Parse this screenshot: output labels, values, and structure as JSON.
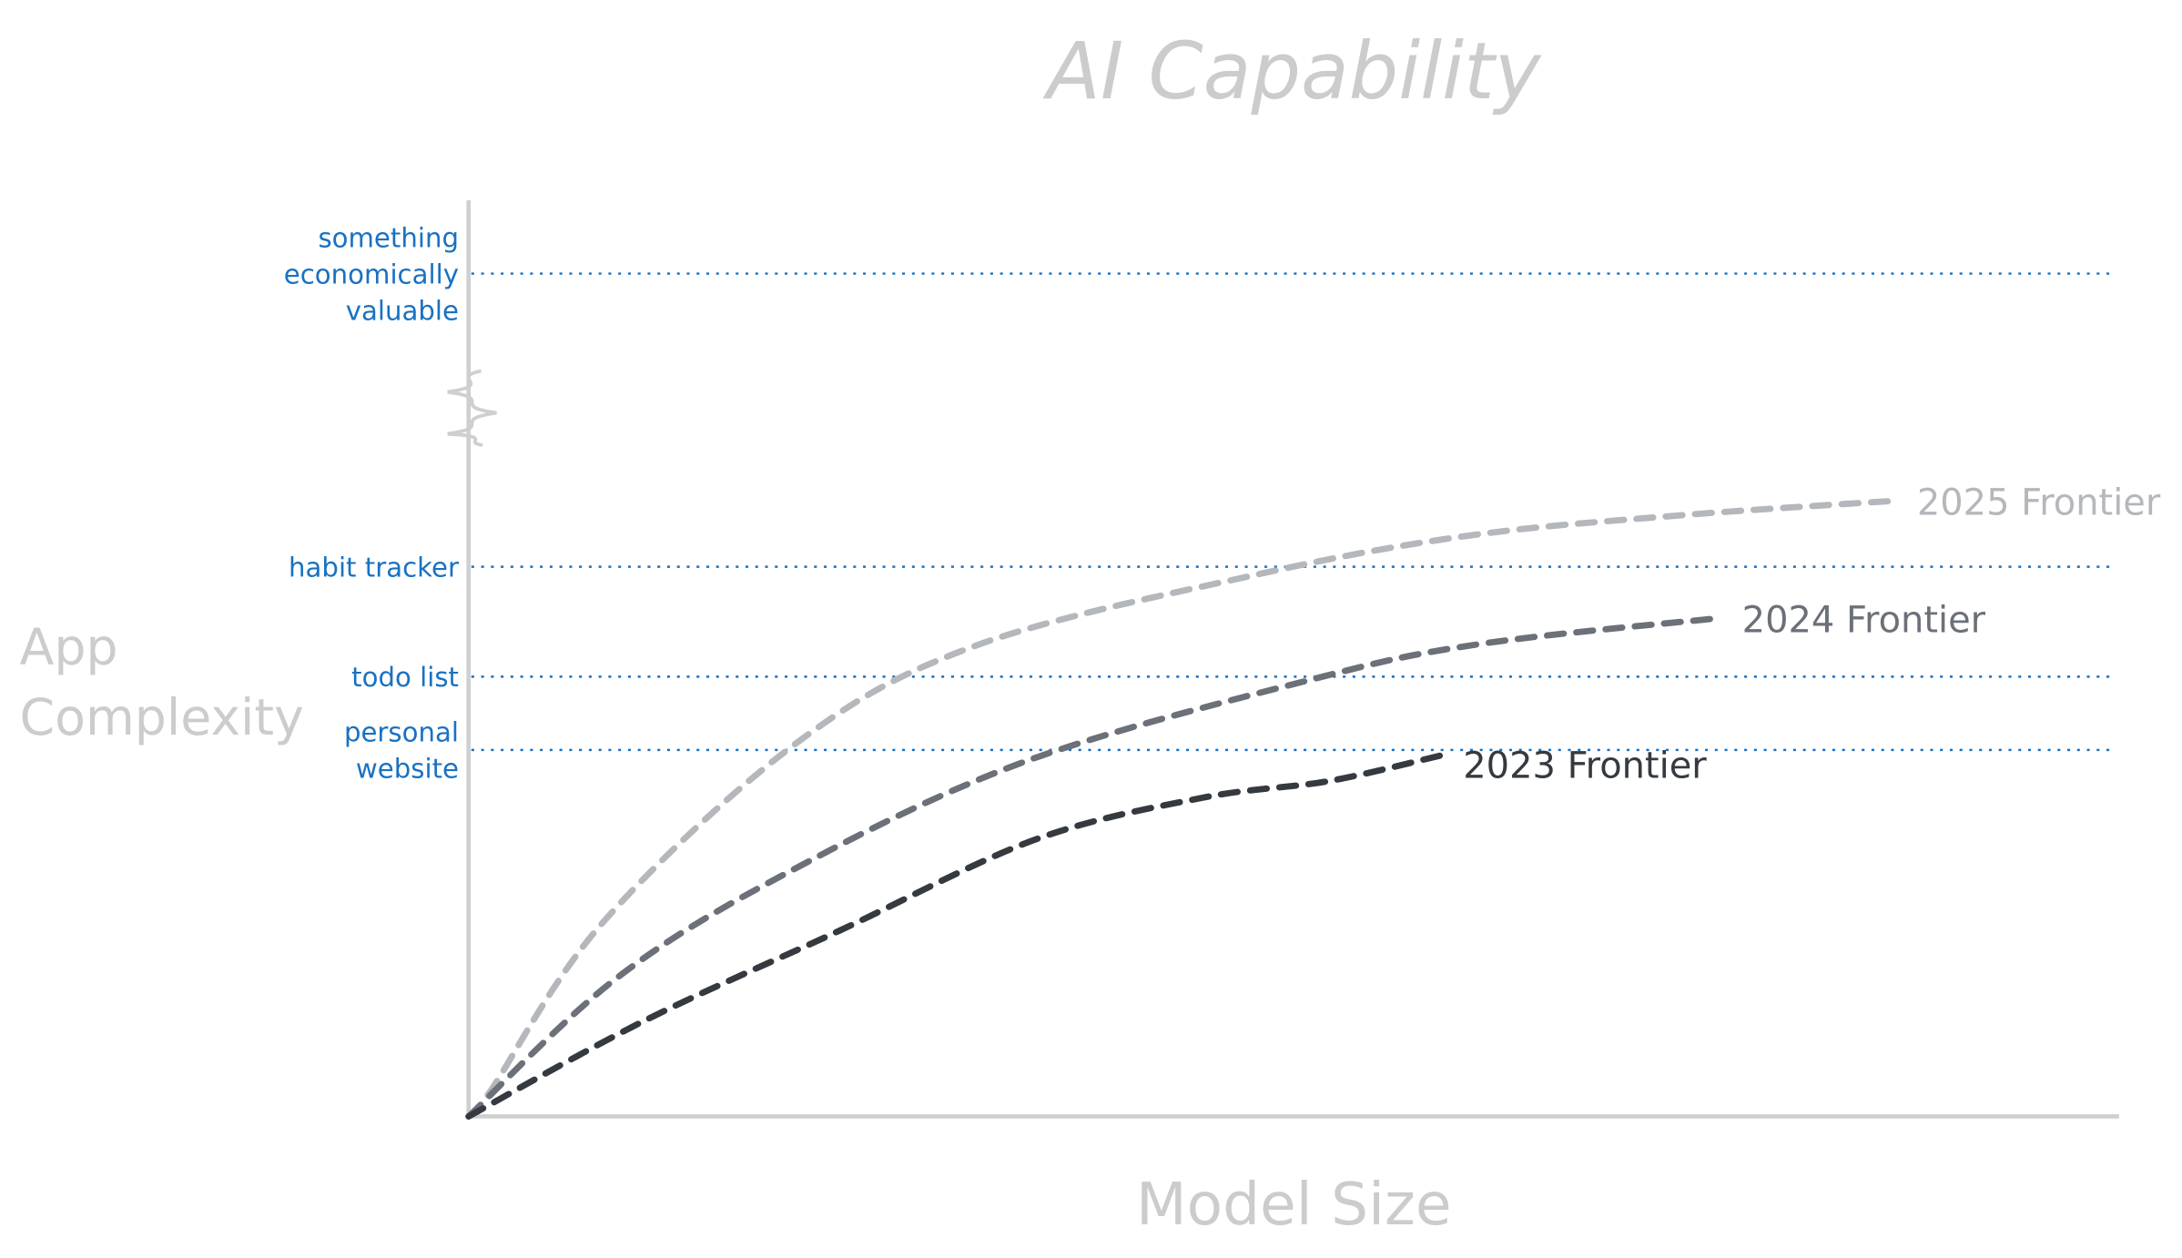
{
  "chart_data": {
    "type": "line",
    "title": "AI Capability",
    "xlabel": "Model Size",
    "ylabel": [
      "App",
      "Complexity"
    ],
    "xlim": [
      0,
      100
    ],
    "ylim": [
      0,
      100
    ],
    "grid": false,
    "axis_break": true,
    "reference_lines": [
      {
        "label": [
          "something",
          "economically",
          "valuable"
        ],
        "y": 92
      },
      {
        "label": [
          "habit tracker"
        ],
        "y": 60
      },
      {
        "label": [
          "todo list"
        ],
        "y": 48
      },
      {
        "label": [
          "personal",
          "website"
        ],
        "y": 40
      }
    ],
    "series": [
      {
        "name": "2025 Frontier",
        "color": "#b4b7bb",
        "x": [
          0,
          1.3,
          8.1,
          19.9,
          30.9,
          47.9,
          60.6,
          73.3,
          86.4
        ],
        "y": [
          0,
          2.7,
          21.1,
          40.8,
          51.5,
          59.2,
          63.4,
          65.6,
          67.2
        ]
      },
      {
        "name": "2024 Frontier",
        "color": "#6b7079",
        "x": [
          0,
          8.9,
          19.1,
          33.5,
          51.3,
          61.4,
          75.8
        ],
        "y": [
          0,
          15,
          26.4,
          38.6,
          47.8,
          51.6,
          54.4
        ]
      },
      {
        "name": "2023 Frontier",
        "color": "#343a40",
        "x": [
          0,
          10.6,
          22.5,
          34.3,
          44.5,
          52.1,
          58.9
        ],
        "y": [
          0,
          10.4,
          20.3,
          30.2,
          34.8,
          36.6,
          39.4
        ]
      }
    ],
    "colors": {
      "title": "#cccccc",
      "axis": "#cfcfcf",
      "reference": "#1971c2"
    }
  }
}
